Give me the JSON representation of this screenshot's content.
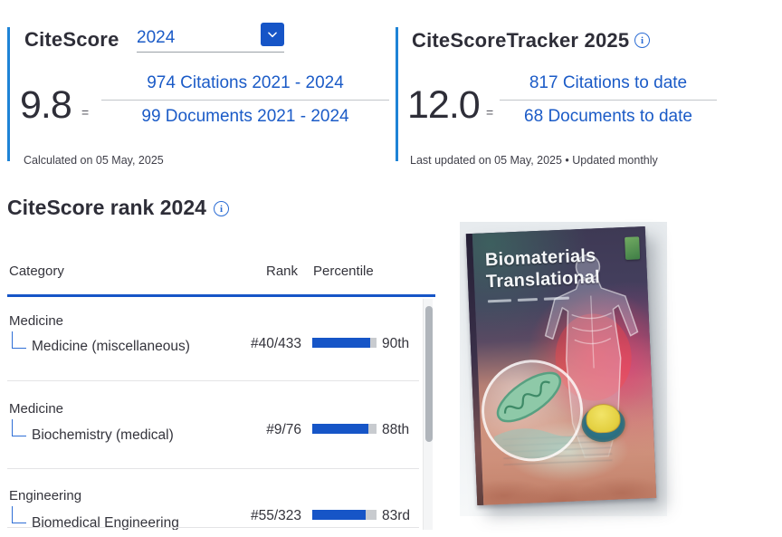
{
  "colors": {
    "link_blue": "#1b5bc7",
    "accent_blue": "#1655c7",
    "panel_border_blue": "#1e83d6",
    "dark_text": "#2e2e38",
    "bar_fill": "#1655c7",
    "bar_track": "#c8cbcf"
  },
  "icons": {
    "info": "i"
  },
  "citescore_panel": {
    "title": "CiteScore",
    "year_selected": "2024",
    "score": "9.8",
    "equals_sign": "=",
    "citations_link": "974 Citations 2021 - 2024",
    "documents_link": "99 Documents 2021 - 2024",
    "footnote": "Calculated on 05 May, 2025"
  },
  "tracker_panel": {
    "title": "CiteScoreTracker 2025",
    "score": "12.0",
    "equals_sign": "=",
    "citations_link": "817 Citations to date",
    "documents_link": "68 Documents to date",
    "footnote": "Last updated on 05 May, 2025 • Updated monthly"
  },
  "rank_section": {
    "title": "CiteScore rank 2024",
    "columns": {
      "category": "Category",
      "rank": "Rank",
      "percentile": "Percentile"
    },
    "rows": [
      {
        "parent": "Medicine",
        "subcategory": "Medicine (miscellaneous)",
        "rank": "#40/433",
        "percentile": "90th",
        "percent": 90
      },
      {
        "parent": "Medicine",
        "subcategory": "Biochemistry (medical)",
        "rank": "#9/76",
        "percentile": "88th",
        "percent": 88
      },
      {
        "parent": "Engineering",
        "subcategory": "Biomedical Engineering",
        "rank": "#55/323",
        "percentile": "83rd",
        "percent": 83
      }
    ]
  },
  "journal_cover": {
    "title_line1": "Biomaterials",
    "title_line2": "Translational"
  }
}
